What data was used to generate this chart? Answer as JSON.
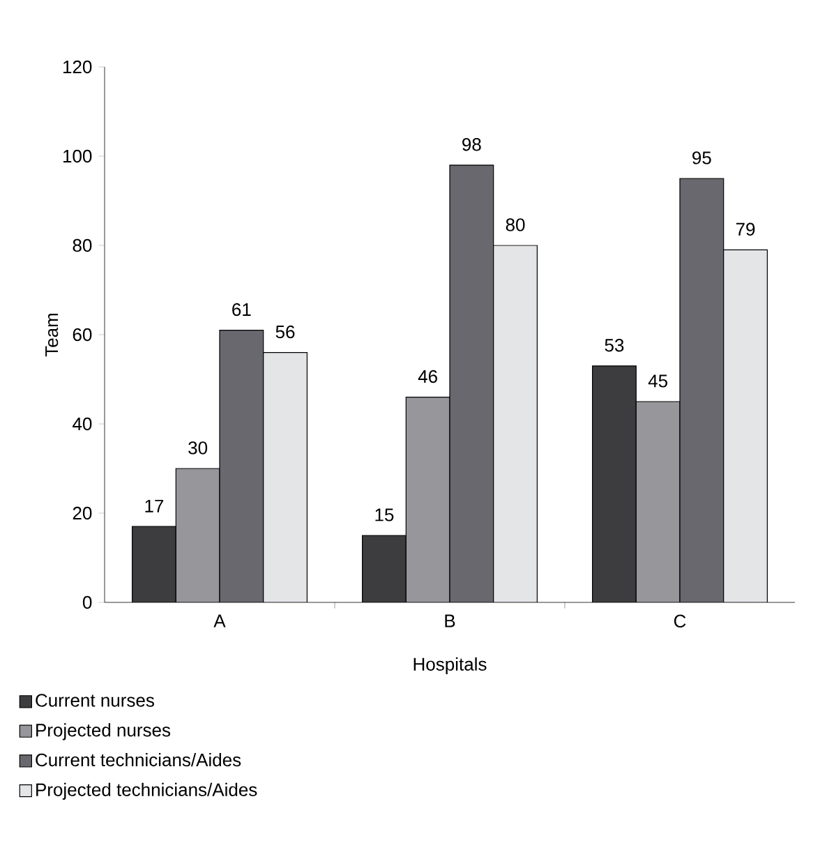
{
  "chart_data": {
    "type": "bar",
    "xlabel": "Hospitals",
    "ylabel": "Team",
    "categories": [
      "A",
      "B",
      "C"
    ],
    "series": [
      {
        "name": "Current nurses",
        "color": "#3d3d3f",
        "values": [
          17,
          15,
          53
        ]
      },
      {
        "name": "Projected nurses",
        "color": "#97979b",
        "values": [
          30,
          46,
          45
        ]
      },
      {
        "name": "Current technicians/Aides",
        "color": "#68686e",
        "values": [
          61,
          98,
          95
        ]
      },
      {
        "name": "Projected technicians/Aides",
        "color": "#e4e5e7",
        "values": [
          56,
          80,
          79
        ]
      }
    ],
    "ylim": [
      0,
      120
    ],
    "yticks": [
      0,
      20,
      40,
      60,
      80,
      100,
      120
    ],
    "data_labels": true,
    "legend": "bottom left"
  }
}
